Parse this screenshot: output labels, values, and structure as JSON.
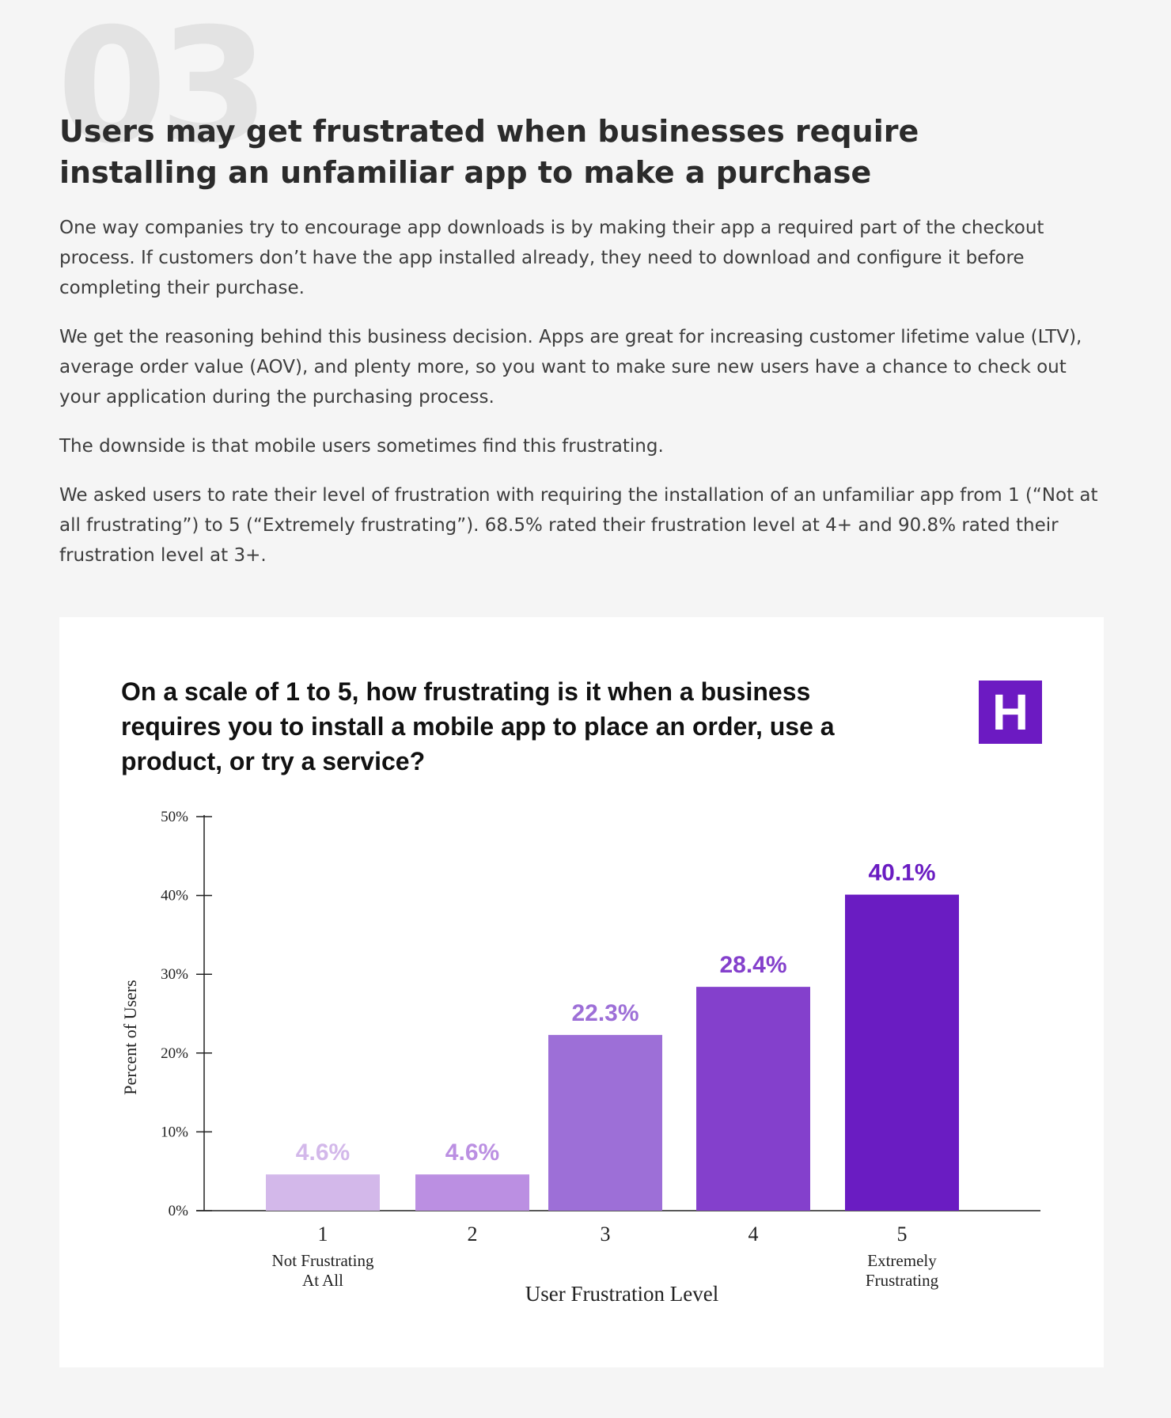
{
  "section_number": "03",
  "heading": "Users may get frustrated when businesses require installing an unfamiliar app to make a purchase",
  "paragraphs": [
    "One way companies try to encourage app downloads is by making their app a required part of the checkout process. If customers don’t have the app installed already, they need to download and configure it before completing their purchase.",
    "We get the reasoning behind this business decision. Apps are great for increasing customer lifetime value (LTV), average order value (AOV), and plenty more, so you want to make sure new users have a chance to check out your application during the purchasing process.",
    "The downside is that mobile users sometimes find this frustrating.",
    "We asked users to rate their level of frustration with requiring the installation of an unfamiliar app from 1 (“Not at all frustrating”) to 5 (“Extremely frustrating”). 68.5% rated their frustration level at 4+ and 90.8% rated their frustration level at 3+."
  ],
  "logo_letter": "H",
  "chart_data": {
    "type": "bar",
    "title": "On a scale of 1 to 5, how frustrating is it when a business requires you to install a mobile app to place an order, use a product, or try a service?",
    "categories": [
      "1",
      "2",
      "3",
      "4",
      "5"
    ],
    "category_sublabels": [
      "Not Frustrating\nAt All",
      "",
      "",
      "",
      "Extremely\nFrustrating"
    ],
    "values": [
      4.6,
      4.6,
      22.3,
      28.4,
      40.1
    ],
    "value_labels": [
      "4.6%",
      "4.6%",
      "22.3%",
      "28.4%",
      "40.1%"
    ],
    "bar_colors": [
      "#d3b8ea",
      "#bb8fe2",
      "#9d6fd7",
      "#8440cc",
      "#6a1cc2"
    ],
    "xlabel": "User Frustration Level",
    "ylabel": "Percent of Users",
    "ylim": [
      0,
      50
    ],
    "yticks": [
      0,
      10,
      20,
      30,
      40,
      50
    ],
    "ytick_labels": [
      "0%",
      "10%",
      "20%",
      "30%",
      "40%",
      "50%"
    ],
    "grid": false,
    "legend": "none"
  }
}
